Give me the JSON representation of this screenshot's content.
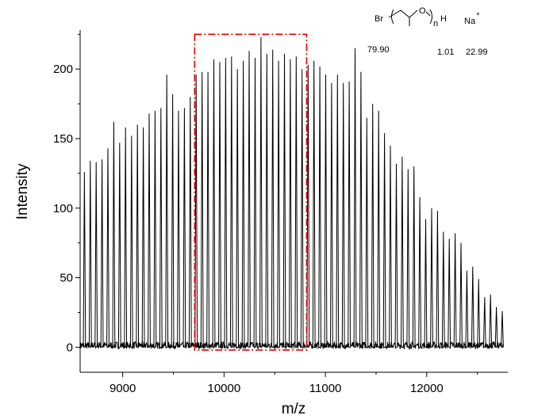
{
  "chart_data": {
    "type": "line",
    "xlabel": "m/z",
    "ylabel": "Intensity",
    "xlim": [
      8580,
      12800
    ],
    "ylim": [
      -18,
      228
    ],
    "x_ticks": [
      9000,
      10000,
      11000,
      12000
    ],
    "y_ticks": [
      0,
      50,
      100,
      150,
      200
    ],
    "grid": false,
    "legend": "none",
    "line_color": "#000000",
    "highlight_box": {
      "x_range": [
        9710,
        10815
      ],
      "y_range": [
        -2,
        225
      ],
      "color": "#e00000",
      "style": "dash-dot"
    },
    "peak_spacing": 58.08,
    "peaks": {
      "x": [
        8622,
        8680,
        8738,
        8796,
        8854,
        8912,
        8970,
        9028,
        9087,
        9145,
        9203,
        9261,
        9319,
        9377,
        9435,
        9493,
        9551,
        9609,
        9667,
        9725,
        9783,
        9841,
        9899,
        9958,
        10016,
        10074,
        10132,
        10190,
        10248,
        10306,
        10364,
        10422,
        10480,
        10538,
        10596,
        10654,
        10712,
        10770,
        10829,
        10887,
        10945,
        11003,
        11061,
        11119,
        11177,
        11235,
        11293,
        11351,
        11409,
        11467,
        11525,
        11583,
        11641,
        11700,
        11758,
        11816,
        11874,
        11932,
        11990,
        12048,
        12106,
        12164,
        12222,
        12280,
        12338,
        12396,
        12454,
        12512,
        12571,
        12629,
        12687,
        12745
      ],
      "y": [
        126,
        134,
        133,
        135,
        143,
        162,
        147,
        158,
        152,
        160,
        158,
        168,
        170,
        172,
        196,
        182,
        170,
        172,
        180,
        196,
        198,
        198,
        207,
        205,
        208,
        209,
        200,
        206,
        213,
        208,
        223,
        211,
        214,
        206,
        211,
        207,
        209,
        200,
        203,
        206,
        202,
        196,
        190,
        196,
        190,
        191,
        215,
        198,
        165,
        175,
        170,
        154,
        145,
        132,
        137,
        128,
        130,
        108,
        92,
        100,
        98,
        83,
        78,
        82,
        75,
        55,
        58,
        49,
        36,
        38,
        29,
        26
      ]
    },
    "annotations": {
      "br_label": "Br",
      "o_label": "O",
      "n_label": "n",
      "h_label": "H",
      "na_label": "Na",
      "na_charge": "+",
      "mass_br": "79.90",
      "mass_h": "1.01",
      "mass_na": "22.99"
    }
  }
}
